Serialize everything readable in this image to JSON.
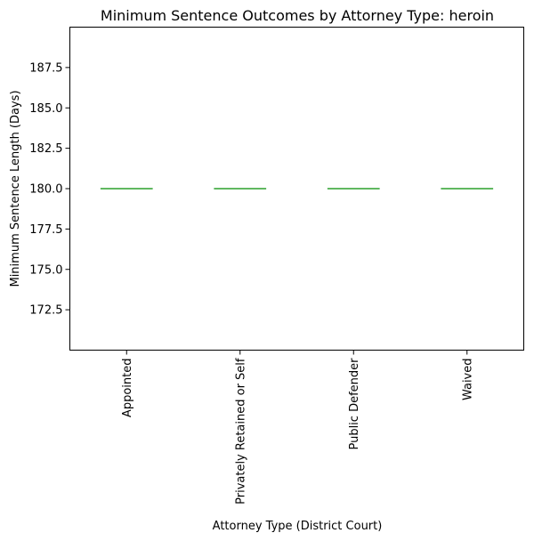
{
  "chart_data": {
    "type": "box",
    "title": "Minimum Sentence Outcomes by Attorney Type: heroin",
    "xlabel": "Attorney Type (District Court)",
    "ylabel": "Minimum Sentence Length (Days)",
    "categories": [
      "Appointed",
      "Privately Retained or Self",
      "Public Defender",
      "Waived"
    ],
    "values": [
      180,
      180,
      180,
      180
    ],
    "ylim": [
      170.0,
      190.0
    ],
    "yticks": [
      172.5,
      175.0,
      177.5,
      180.0,
      182.5,
      185.0,
      187.5
    ],
    "ytick_labels": [
      "172.5",
      "175.0",
      "177.5",
      "180.0",
      "182.5",
      "185.0",
      "187.5"
    ],
    "grid": false,
    "colors": {
      "median": "#2ca02c",
      "box": "#1f77b4",
      "frame": "#000000"
    }
  }
}
